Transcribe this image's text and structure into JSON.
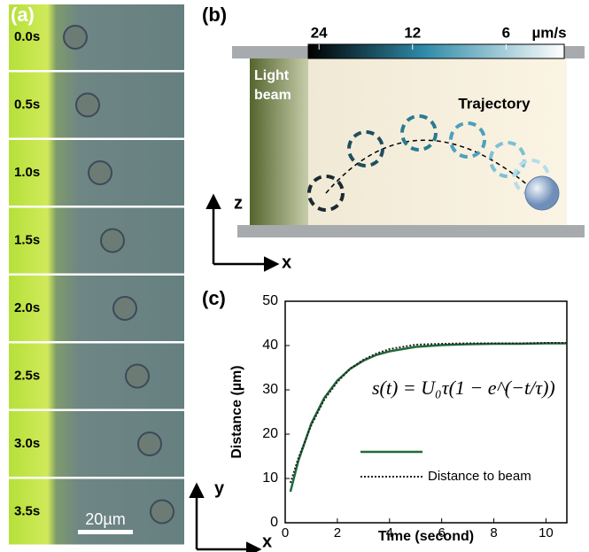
{
  "panel_a": {
    "label": "(a)",
    "frames": [
      "0.0s",
      "0.5s",
      "1.0s",
      "1.5s",
      "2.0s",
      "2.5s",
      "3.0s",
      "3.5s"
    ],
    "scale_bar": "20µm"
  },
  "panel_b": {
    "label": "(b)",
    "colorbar": {
      "ticks": [
        24,
        12,
        6
      ],
      "unit": "µm/s",
      "lim": [
        26,
        3.9
      ],
      "log": true
    },
    "beam_label": [
      "Light",
      "beam"
    ],
    "trajectory_label": "Trajectory",
    "axis_labels": [
      "z",
      "x"
    ]
  },
  "chart_data": {
    "type": "line",
    "label": "(c)",
    "annotation": "s(t) = U₀τ(1 − e^(−t/τ))",
    "x_label": "Time (second)",
    "y_label": "Distance (µm)",
    "corner_axis_labels": [
      "y",
      "x"
    ],
    "x": [
      0.2,
      0.5,
      1,
      1.5,
      2,
      2.5,
      3,
      3.5,
      4,
      5,
      6,
      7,
      8,
      9,
      10,
      10.8
    ],
    "series": [
      {
        "color": "#1f6b3a",
        "style": "solid",
        "values": [
          7,
          13.9,
          22.4,
          28.2,
          32.1,
          34.8,
          36.6,
          37.9,
          38.7,
          39.7,
          40.1,
          40.3,
          40.4,
          40.4,
          40.5,
          40.5
        ]
      },
      {
        "name": "Distance to beam",
        "color": "#222222",
        "style": "dotted",
        "values": [
          9,
          14.5,
          22,
          27.8,
          31.8,
          34.8,
          36.8,
          38.2,
          39.2,
          40.2,
          40.4,
          40.5,
          40.5,
          40.5,
          40.6,
          40.6
        ]
      }
    ],
    "xlim": [
      0,
      10.8
    ],
    "ylim": [
      0,
      50
    ],
    "xticks": [
      0,
      2,
      4,
      6,
      8,
      10
    ],
    "yticks": [
      0,
      10,
      20,
      30,
      40,
      50
    ]
  }
}
